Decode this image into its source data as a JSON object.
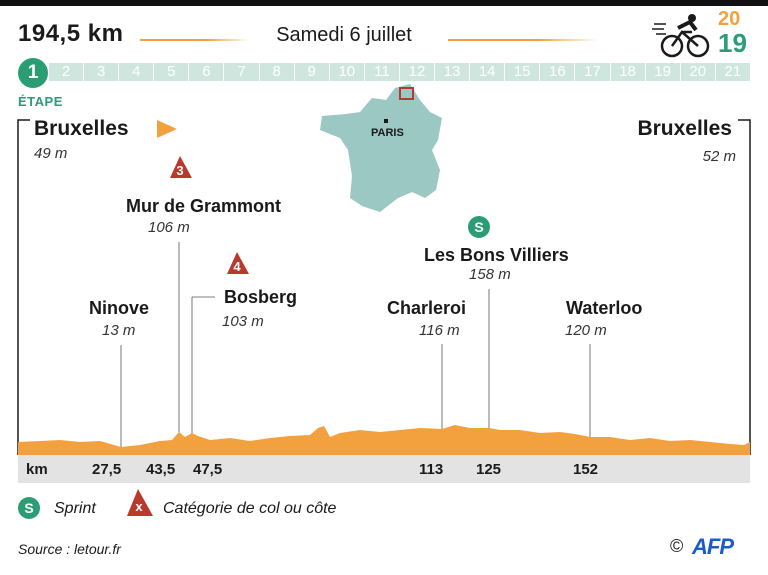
{
  "header": {
    "distance": "194,5 km",
    "date": "Samedi 6 juillet",
    "logo_year_top": "20",
    "logo_year_bottom": "19"
  },
  "stage": {
    "current": "1",
    "label": "ÉTAPE",
    "numbers": [
      "2",
      "3",
      "4",
      "5",
      "6",
      "7",
      "8",
      "9",
      "10",
      "11",
      "12",
      "13",
      "14",
      "15",
      "16",
      "17",
      "18",
      "19",
      "20",
      "21"
    ]
  },
  "map": {
    "city_label": "PARIS"
  },
  "places": {
    "start": {
      "name": "Bruxelles",
      "alt": "49 m"
    },
    "finish": {
      "name": "Bruxelles",
      "alt": "52 m"
    },
    "ninove": {
      "name": "Ninove",
      "alt": "13 m",
      "km": "27,5"
    },
    "grammont": {
      "name": "Mur de Grammont",
      "alt": "106 m",
      "km": "43,5",
      "cat": "3"
    },
    "bosberg": {
      "name": "Bosberg",
      "alt": "103 m",
      "km": "47,5",
      "cat": "4"
    },
    "charleroi": {
      "name": "Charleroi",
      "alt": "116 m",
      "km": "113"
    },
    "bonsvilliers": {
      "name": "Les Bons Villiers",
      "alt": "158 m",
      "km": "125",
      "sprint": "S"
    },
    "waterloo": {
      "name": "Waterloo",
      "alt": "120 m",
      "km": "152"
    }
  },
  "axis": {
    "unit": "km"
  },
  "legend": {
    "sprint_symbol": "S",
    "sprint_label": "Sprint",
    "climb_symbol": "x",
    "climb_label": "Catégorie de col ou côte"
  },
  "footer": {
    "source": "Source : letour.fr",
    "copyright": "©",
    "agency": "AFP"
  },
  "colors": {
    "accent_green": "#2a9d74",
    "profile_orange": "#f3a13f",
    "climb_red": "#b83a2d",
    "stage_bar": "#cfe6df"
  }
}
